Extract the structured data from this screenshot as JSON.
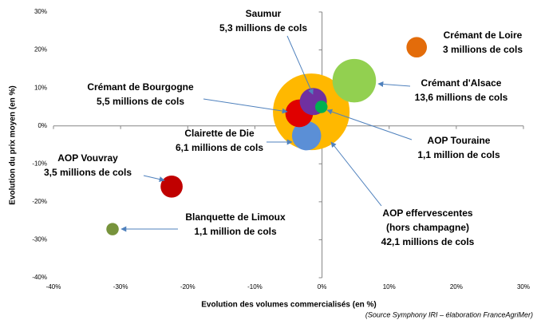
{
  "chart_data": {
    "type": "bubble",
    "x_label": "Evolution des volumes commercialisés (en %)",
    "y_label": "Evolution du prix moyen (en %)",
    "source": "(Source Symphony IRI – élaboration FranceAgriMer)",
    "xlim": [
      -40,
      30
    ],
    "ylim": [
      -40,
      30
    ],
    "xticks": [
      {
        "value": -40,
        "label": "-40%"
      },
      {
        "value": -30,
        "label": "-30%"
      },
      {
        "value": -20,
        "label": "-20%"
      },
      {
        "value": -10,
        "label": "-10%"
      },
      {
        "value": 0,
        "label": "0%"
      },
      {
        "value": 10,
        "label": "10%"
      },
      {
        "value": 20,
        "label": "20%"
      },
      {
        "value": 30,
        "label": "30%"
      }
    ],
    "yticks": [
      {
        "value": -40,
        "label": "-40%"
      },
      {
        "value": -30,
        "label": "-30%"
      },
      {
        "value": -20,
        "label": "-20%"
      },
      {
        "value": -10,
        "label": "-10%"
      },
      {
        "value": 0,
        "label": "0%"
      },
      {
        "value": 10,
        "label": "10%"
      },
      {
        "value": 20,
        "label": "20%"
      },
      {
        "value": 30,
        "label": "30%"
      }
    ],
    "series": [
      {
        "name": "AOP effervescentes",
        "qualifier": "(hors champagne)",
        "color": "#ffb800",
        "x": -1.6,
        "y": 3.7,
        "size": 42.1,
        "size_label": "42,1 millions de cols"
      },
      {
        "name": "Crémant de Loire",
        "color": "#e36c0a",
        "x": 14.1,
        "y": 20.7,
        "size": 3,
        "size_label": "3 millions de cols"
      },
      {
        "name": "Crémant d'Alsace",
        "color": "#92d050",
        "x": 4.8,
        "y": 11.9,
        "size": 13.6,
        "size_label": "13,6 millions de cols"
      },
      {
        "name": "Clairette de Die",
        "color": "#5b8fd6",
        "x": -2.3,
        "y": -2.6,
        "size": 6.1,
        "size_label": "6,1 millions de cols"
      },
      {
        "name": "Crémant de Bourgogne",
        "color": "#e00000",
        "x": -3.4,
        "y": 3.3,
        "size": 5.5,
        "size_label": "5,5 millions de cols"
      },
      {
        "name": "Saumur",
        "color": "#7030a0",
        "x": -1.3,
        "y": 6.4,
        "size": 5.3,
        "size_label": "5,3 millions de cols"
      },
      {
        "name": "AOP Touraine",
        "color": "#00b050",
        "x": -0.1,
        "y": 5.0,
        "size": 1.1,
        "size_label": "1,1 million de cols"
      },
      {
        "name": "AOP Vouvray",
        "color": "#c00000",
        "x": -22.4,
        "y": -16.0,
        "size": 3.5,
        "size_label": "3,5 millions de cols"
      },
      {
        "name": "Blanquette de Limoux",
        "color": "#77933c",
        "x": -31.2,
        "y": -27.2,
        "size": 1.1,
        "size_label": "1,1 million de cols"
      }
    ]
  }
}
